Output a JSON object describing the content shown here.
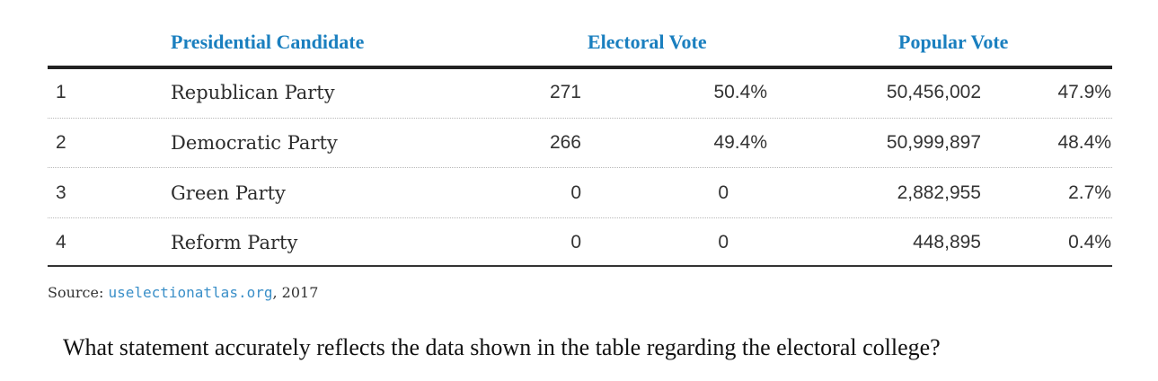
{
  "table": {
    "headers": {
      "candidate": "Presidential Candidate",
      "electoral": "Electoral Vote",
      "popular": "Popular Vote"
    },
    "rows": [
      {
        "rank": "1",
        "party": "Republican Party",
        "ev": "271",
        "ev_pct": "50.4%",
        "pv": "50,456,002",
        "pv_pct": "47.9%"
      },
      {
        "rank": "2",
        "party": "Democratic Party",
        "ev": "266",
        "ev_pct": "49.4%",
        "pv": "50,999,897",
        "pv_pct": "48.4%"
      },
      {
        "rank": "3",
        "party": "Green Party",
        "ev": "0",
        "ev_pct": "0",
        "pv": "2,882,955",
        "pv_pct": "2.7%"
      },
      {
        "rank": "4",
        "party": "Reform Party",
        "ev": "0",
        "ev_pct": "0",
        "pv": "448,895",
        "pv_pct": "0.4%"
      }
    ]
  },
  "source": {
    "prefix": "Source: ",
    "link": "uselectionatlas.org",
    "suffix": ", 2017"
  },
  "question": "What statement accurately reflects the data shown in the table regarding the electoral college?",
  "colors": {
    "header": "#1a7fbf",
    "link": "#3a8fc8"
  }
}
